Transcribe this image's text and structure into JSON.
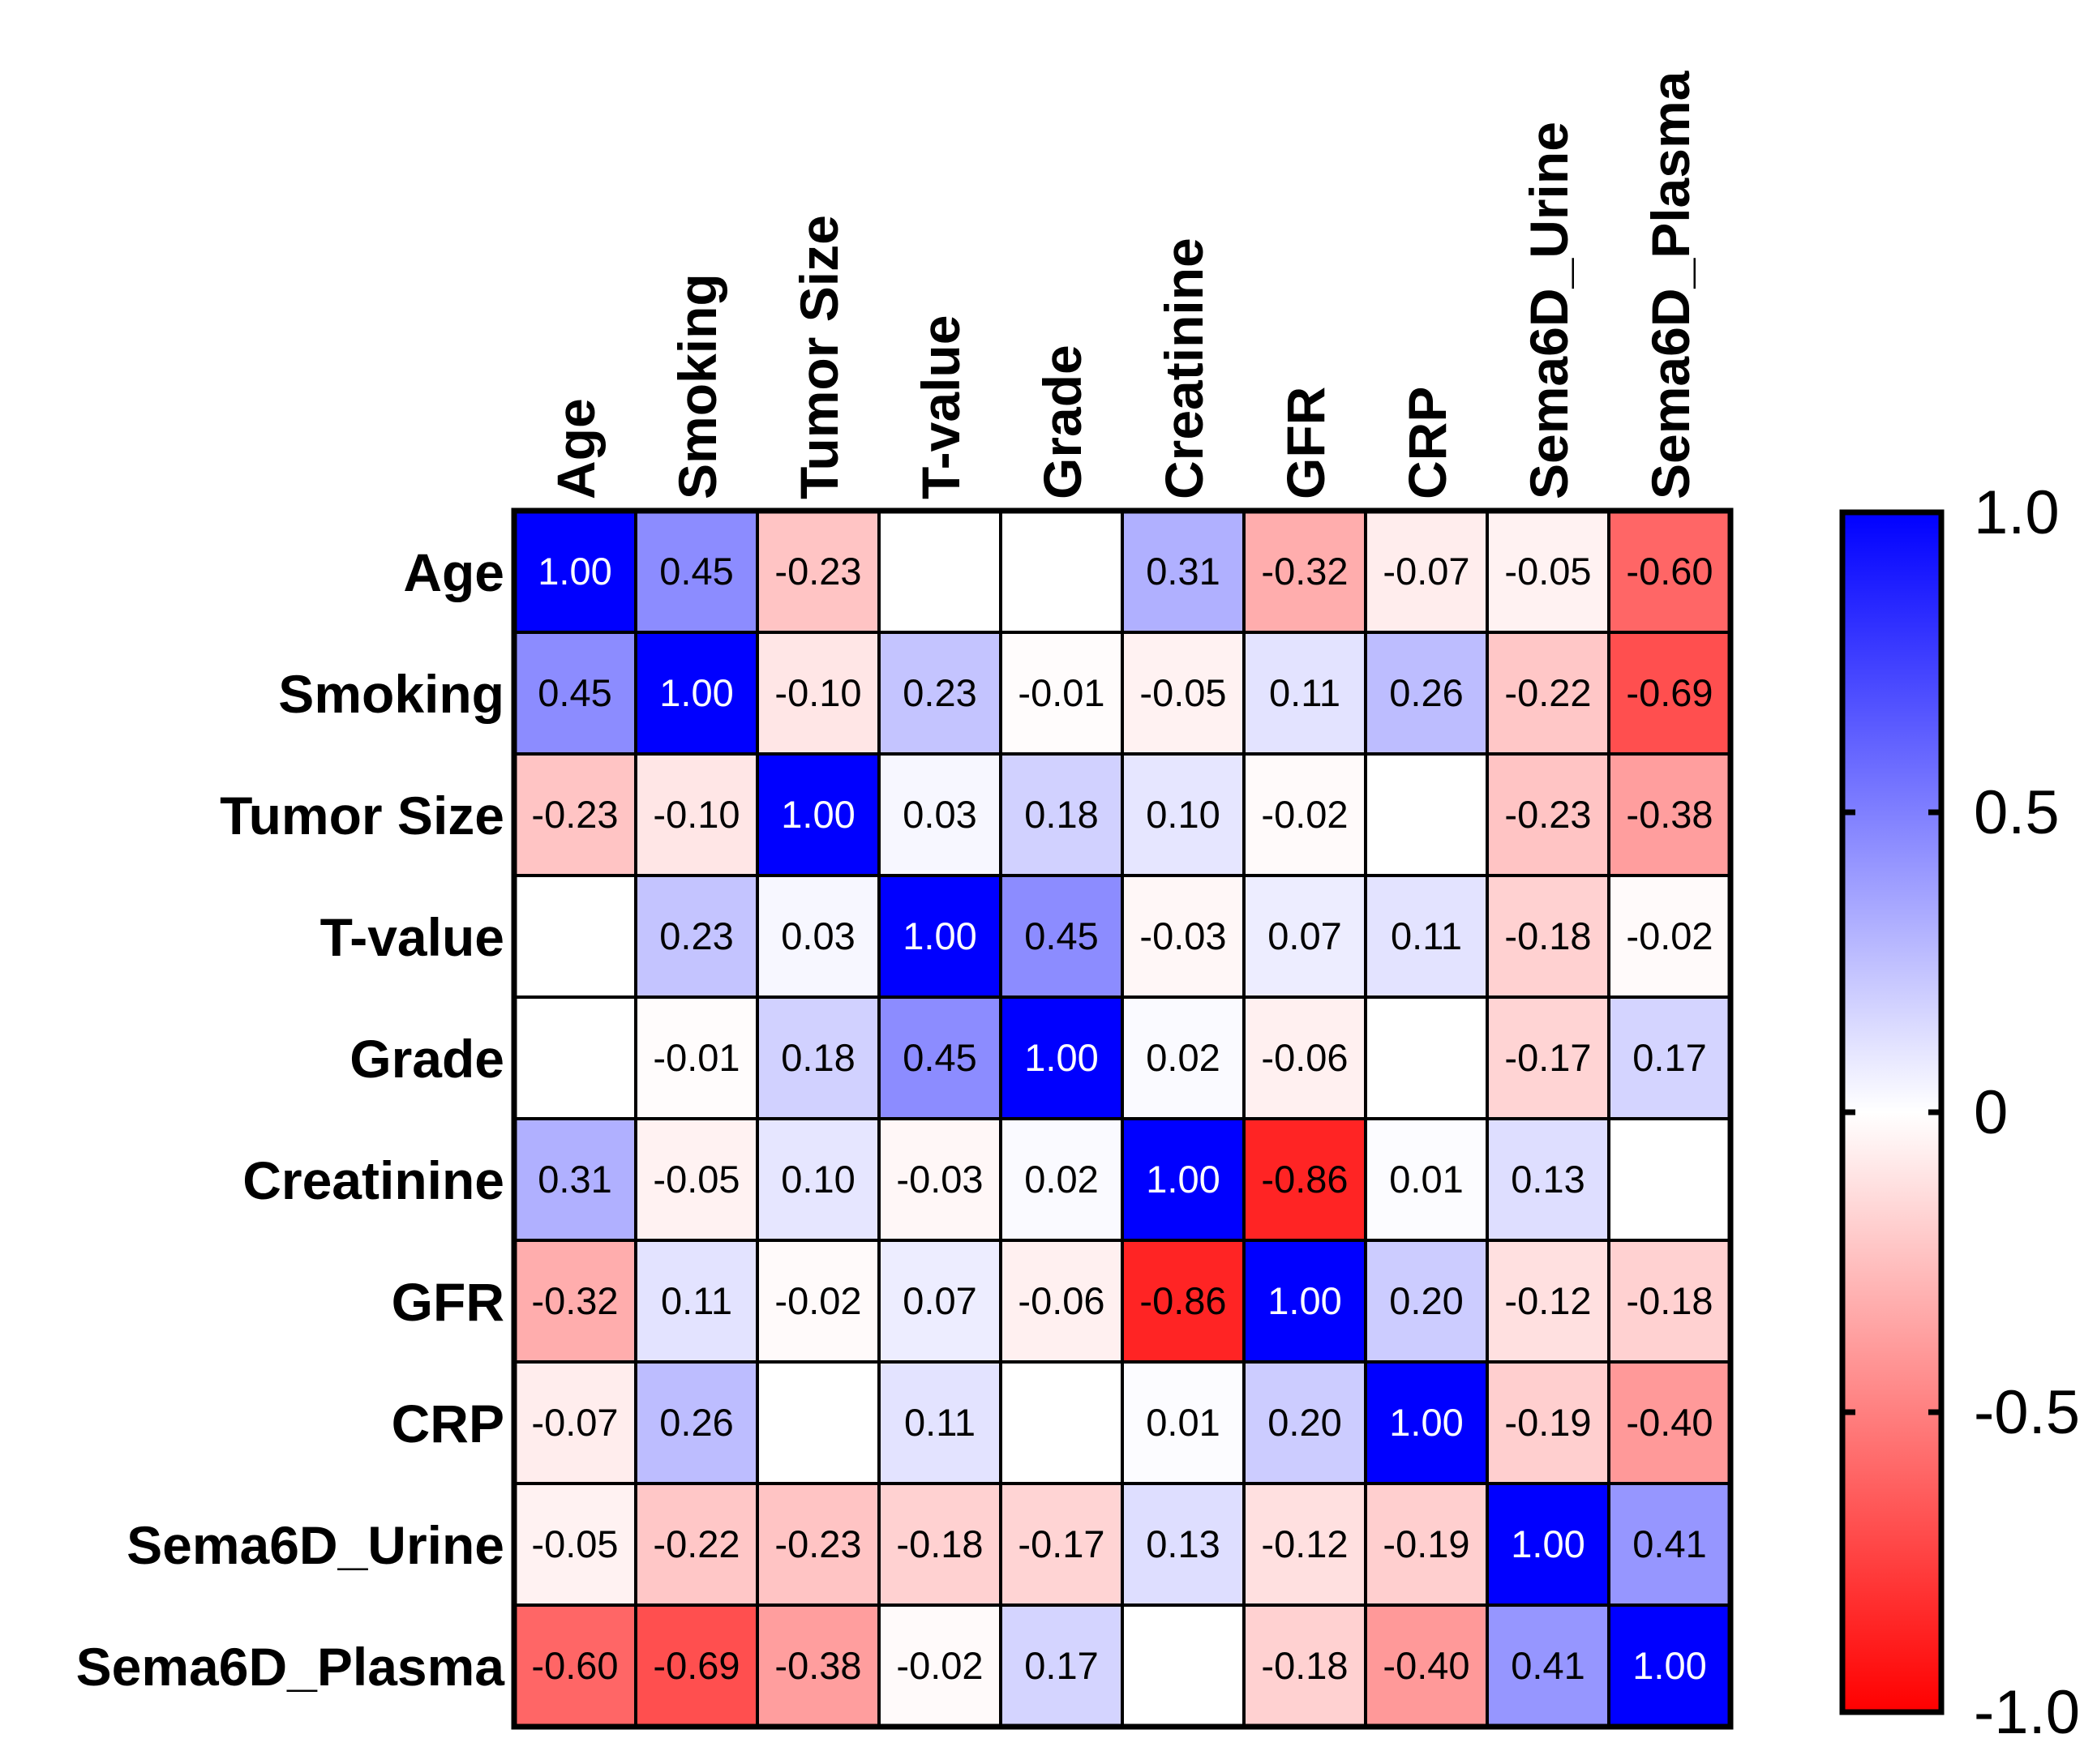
{
  "chart_data": {
    "type": "heatmap",
    "title": "",
    "labels": [
      "Age",
      "Smoking",
      "Tumor Size",
      "T-value",
      "Grade",
      "Creatinine",
      "GFR",
      "CRP",
      "Sema6D_Urine",
      "Sema6D_Plasma"
    ],
    "matrix": [
      [
        1.0,
        0.45,
        -0.23,
        null,
        null,
        0.31,
        -0.32,
        -0.07,
        -0.05,
        -0.6
      ],
      [
        0.45,
        1.0,
        -0.1,
        0.23,
        -0.01,
        -0.05,
        0.11,
        0.26,
        -0.22,
        -0.69
      ],
      [
        -0.23,
        -0.1,
        1.0,
        0.03,
        0.18,
        0.1,
        -0.02,
        null,
        -0.23,
        -0.38
      ],
      [
        null,
        0.23,
        0.03,
        1.0,
        0.45,
        -0.03,
        0.07,
        0.11,
        -0.18,
        -0.02
      ],
      [
        null,
        -0.01,
        0.18,
        0.45,
        1.0,
        0.02,
        -0.06,
        null,
        -0.17,
        0.17
      ],
      [
        0.31,
        -0.05,
        0.1,
        -0.03,
        0.02,
        1.0,
        -0.86,
        0.01,
        0.13,
        null
      ],
      [
        -0.32,
        0.11,
        -0.02,
        0.07,
        -0.06,
        -0.86,
        1.0,
        0.2,
        -0.12,
        -0.18
      ],
      [
        -0.07,
        0.26,
        null,
        0.11,
        null,
        0.01,
        0.2,
        1.0,
        -0.19,
        -0.4
      ],
      [
        -0.05,
        -0.22,
        -0.23,
        -0.18,
        -0.17,
        0.13,
        -0.12,
        -0.19,
        1.0,
        0.41
      ],
      [
        -0.6,
        -0.69,
        -0.38,
        -0.02,
        0.17,
        null,
        -0.18,
        -0.4,
        0.41,
        1.0
      ]
    ],
    "colorbar": {
      "range": [
        -1.0,
        1.0
      ],
      "ticks": [
        1.0,
        0.5,
        0,
        -0.5,
        -1.0
      ],
      "tick_labels": [
        "1.0",
        "0.5",
        "0",
        "-0.5",
        "-1.0"
      ],
      "colors": {
        "positive": "#0000ff",
        "zero": "#ffffff",
        "negative": "#ff0000"
      }
    },
    "legend": "right"
  }
}
